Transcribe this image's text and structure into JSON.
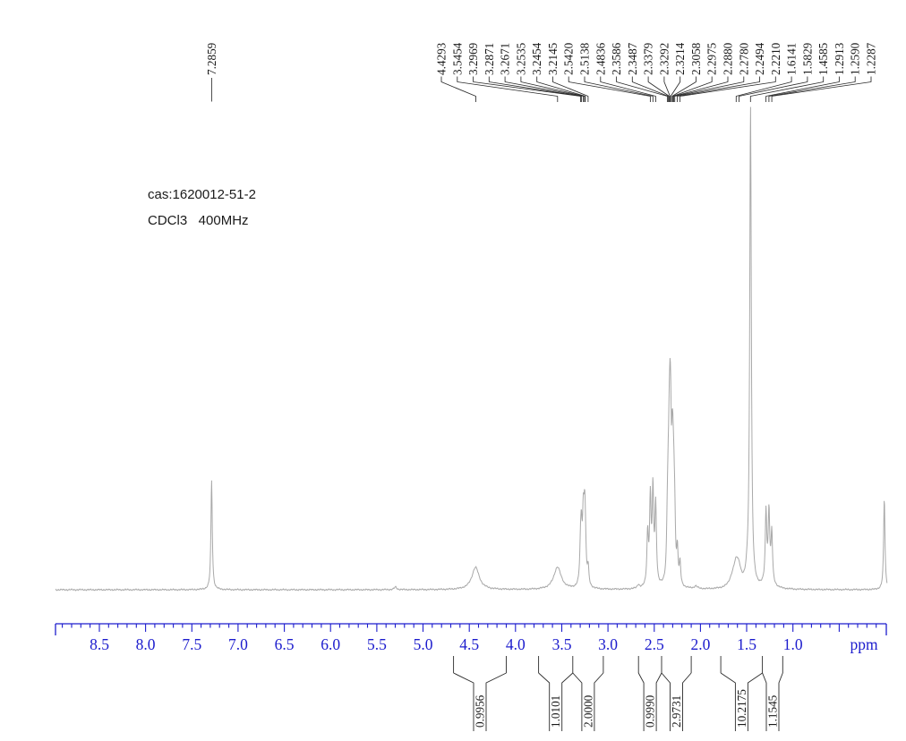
{
  "annotations": {
    "cas_line": "cas:1620012-51-2",
    "solvent_line": "CDCl3   400MHz"
  },
  "colors": {
    "axis_blue": "#1c1ccd",
    "trace_gray": "#a9a9a9",
    "callout_black": "#2b2b2b",
    "text_black": "#1a1a1a"
  },
  "chart_data": {
    "type": "line",
    "title": "1H NMR spectrum",
    "xlabel": "ppm",
    "x_axis": {
      "unit_label": "ppm",
      "tick_labels": [
        "8.5",
        "8.0",
        "7.5",
        "7.0",
        "6.5",
        "6.0",
        "5.5",
        "5.0",
        "4.5",
        "4.0",
        "3.5",
        "3.0",
        "2.5",
        "2.0",
        "1.5",
        "1.0"
      ],
      "major_step": 0.5,
      "minor_step": 0.1,
      "range_ppm": [
        8.97,
        -0.02
      ],
      "direction": "reversed",
      "grid": false
    },
    "peak_label_standalone": "7.2859",
    "peak_labels_cluster": [
      "4.4293",
      "3.5454",
      "3.2969",
      "3.2871",
      "3.2671",
      "3.2535",
      "3.2454",
      "3.2145",
      "2.5420",
      "2.5138",
      "2.4836",
      "2.3586",
      "2.3487",
      "2.3379",
      "2.3292",
      "2.3214",
      "2.3058",
      "2.2975",
      "2.2880",
      "2.2780",
      "2.2494",
      "2.2210",
      "1.6141",
      "1.5829",
      "1.4585",
      "1.2913",
      "1.2590",
      "1.2287"
    ],
    "integrals": [
      {
        "value": "0.9956",
        "region_ppm": [
          4.67,
          4.1
        ]
      },
      {
        "value": "1.0101",
        "region_ppm": [
          3.75,
          3.38
        ]
      },
      {
        "value": "2.0000",
        "region_ppm": [
          3.38,
          3.05
        ]
      },
      {
        "value": "0.9990",
        "region_ppm": [
          2.67,
          2.42
        ]
      },
      {
        "value": "2.9731",
        "region_ppm": [
          2.42,
          2.1
        ]
      },
      {
        "value": "10.2175",
        "region_ppm": [
          1.78,
          1.33
        ]
      },
      {
        "value": "1.1545",
        "region_ppm": [
          1.33,
          1.11
        ]
      }
    ],
    "trace_peaks": [
      {
        "ppm": 7.2859,
        "intensity": 122,
        "width": 0.9
      },
      {
        "ppm": 5.298,
        "intensity": 3,
        "width": 1.6
      },
      {
        "ppm": 4.432,
        "intensity": 25,
        "width": 5.0
      },
      {
        "ppm": 3.546,
        "intensity": 25,
        "width": 5.0
      },
      {
        "ppm": 3.2969,
        "intensity": 36,
        "width": 1.0
      },
      {
        "ppm": 3.2871,
        "intensity": 52,
        "width": 1.0
      },
      {
        "ppm": 3.2671,
        "intensity": 66,
        "width": 1.0
      },
      {
        "ppm": 3.2535,
        "intensity": 58,
        "width": 1.0
      },
      {
        "ppm": 3.2454,
        "intensity": 44,
        "width": 1.0
      },
      {
        "ppm": 3.2145,
        "intensity": 20,
        "width": 1.0
      },
      {
        "ppm": 2.671,
        "intensity": 4,
        "width": 1.5
      },
      {
        "ppm": 2.571,
        "intensity": 58,
        "width": 1.0
      },
      {
        "ppm": 2.542,
        "intensity": 95,
        "width": 1.0
      },
      {
        "ppm": 2.514,
        "intensity": 104,
        "width": 1.0
      },
      {
        "ppm": 2.484,
        "intensity": 88,
        "width": 1.0
      },
      {
        "ppm": 2.3586,
        "intensity": 48,
        "width": 0.9
      },
      {
        "ppm": 2.3487,
        "intensity": 70,
        "width": 0.9
      },
      {
        "ppm": 2.3379,
        "intensity": 98,
        "width": 0.9
      },
      {
        "ppm": 2.3292,
        "intensity": 112,
        "width": 0.9
      },
      {
        "ppm": 2.3214,
        "intensity": 107,
        "width": 0.9
      },
      {
        "ppm": 2.3058,
        "intensity": 90,
        "width": 0.9
      },
      {
        "ppm": 2.2975,
        "intensity": 79,
        "width": 0.9
      },
      {
        "ppm": 2.288,
        "intensity": 67,
        "width": 0.9
      },
      {
        "ppm": 2.278,
        "intensity": 54,
        "width": 0.9
      },
      {
        "ppm": 2.2494,
        "intensity": 36,
        "width": 0.9
      },
      {
        "ppm": 2.221,
        "intensity": 25,
        "width": 0.9
      },
      {
        "ppm": 2.05,
        "intensity": 3,
        "width": 2.0
      },
      {
        "ppm": 1.655,
        "intensity": 8,
        "width": 4.0
      },
      {
        "ppm": 1.6141,
        "intensity": 23,
        "width": 3.5
      },
      {
        "ppm": 1.5829,
        "intensity": 14,
        "width": 3.0
      },
      {
        "ppm": 1.493,
        "intensity": 10,
        "width": 2.0
      },
      {
        "ppm": 1.4585,
        "intensity": 539,
        "width": 1.05
      },
      {
        "ppm": 1.2913,
        "intensity": 77,
        "width": 0.95
      },
      {
        "ppm": 1.263,
        "intensity": 12,
        "width": 4.0
      },
      {
        "ppm": 1.259,
        "intensity": 73,
        "width": 0.95
      },
      {
        "ppm": 1.2287,
        "intensity": 55,
        "width": 0.95
      },
      {
        "ppm": 0.012,
        "intensity": 102,
        "width": 0.9
      }
    ]
  }
}
